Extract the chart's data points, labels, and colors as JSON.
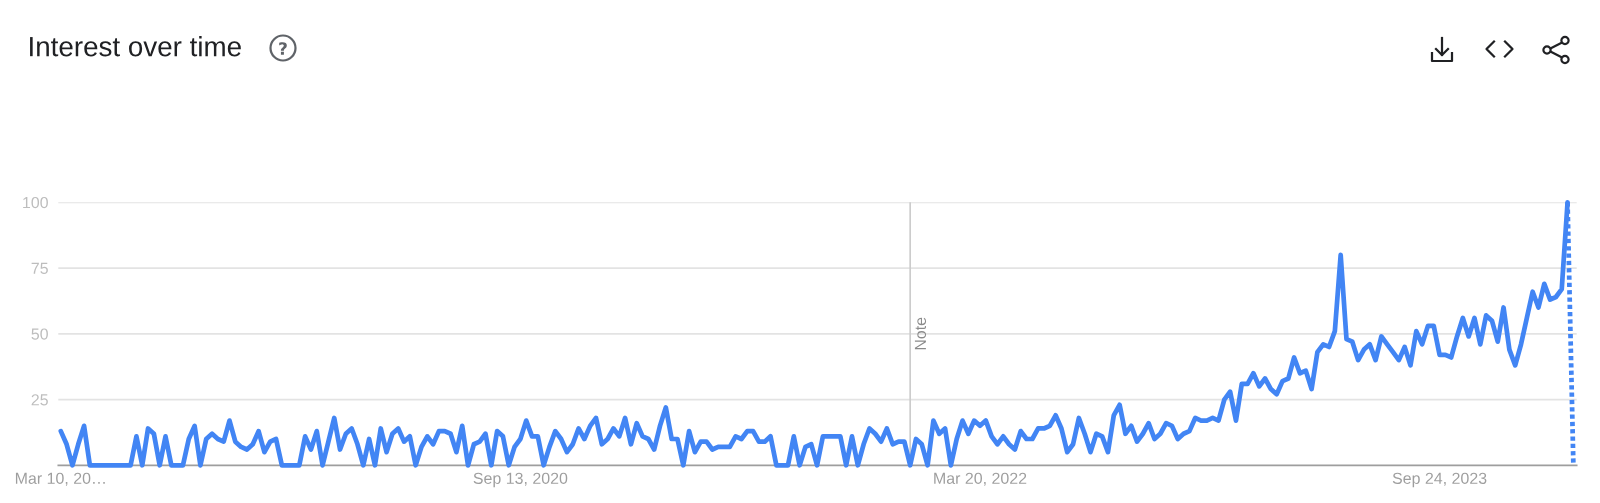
{
  "chart_data": {
    "type": "line",
    "title": "Interest over time",
    "series": [
      {
        "color": "#4285f4",
        "line_style": "solid",
        "x": [
          "2019-03-10",
          "2019-03-17",
          "2019-03-24",
          "2019-03-31",
          "2019-04-07",
          "2019-04-14",
          "2019-04-21",
          "2019-04-28",
          "2019-05-05",
          "2019-05-12",
          "2019-05-19",
          "2019-05-26",
          "2019-06-02",
          "2019-06-09",
          "2019-06-16",
          "2019-06-23",
          "2019-06-30",
          "2019-07-07",
          "2019-07-14",
          "2019-07-21",
          "2019-07-28",
          "2019-08-04",
          "2019-08-11",
          "2019-08-18",
          "2019-08-25",
          "2019-09-01",
          "2019-09-08",
          "2019-09-15",
          "2019-09-22",
          "2019-09-29",
          "2019-10-06",
          "2019-10-13",
          "2019-10-20",
          "2019-10-27",
          "2019-11-03",
          "2019-11-10",
          "2019-11-17",
          "2019-11-24",
          "2019-12-01",
          "2019-12-08",
          "2019-12-15",
          "2019-12-22",
          "2019-12-29",
          "2020-01-05",
          "2020-01-12",
          "2020-01-19",
          "2020-01-26",
          "2020-02-02",
          "2020-02-09",
          "2020-02-16",
          "2020-02-23",
          "2020-03-01",
          "2020-03-08",
          "2020-03-15",
          "2020-03-22",
          "2020-03-29",
          "2020-04-05",
          "2020-04-12",
          "2020-04-19",
          "2020-04-26",
          "2020-05-03",
          "2020-05-10",
          "2020-05-17",
          "2020-05-24",
          "2020-05-31",
          "2020-06-07",
          "2020-06-14",
          "2020-06-21",
          "2020-06-28",
          "2020-07-05",
          "2020-07-12",
          "2020-07-19",
          "2020-07-26",
          "2020-08-02",
          "2020-08-09",
          "2020-08-16",
          "2020-08-23",
          "2020-08-30",
          "2020-09-06",
          "2020-09-13",
          "2020-09-20",
          "2020-09-27",
          "2020-10-04",
          "2020-10-11",
          "2020-10-18",
          "2020-10-25",
          "2020-11-01",
          "2020-11-08",
          "2020-11-15",
          "2020-11-22",
          "2020-11-29",
          "2020-12-06",
          "2020-12-13",
          "2020-12-20",
          "2020-12-27",
          "2021-01-03",
          "2021-01-10",
          "2021-01-17",
          "2021-01-24",
          "2021-01-31",
          "2021-02-07",
          "2021-02-14",
          "2021-02-21",
          "2021-02-28",
          "2021-03-07",
          "2021-03-14",
          "2021-03-21",
          "2021-03-28",
          "2021-04-04",
          "2021-04-11",
          "2021-04-18",
          "2021-04-25",
          "2021-05-02",
          "2021-05-09",
          "2021-05-16",
          "2021-05-23",
          "2021-05-30",
          "2021-06-06",
          "2021-06-13",
          "2021-06-20",
          "2021-06-27",
          "2021-07-04",
          "2021-07-11",
          "2021-07-18",
          "2021-07-25",
          "2021-08-01",
          "2021-08-08",
          "2021-08-15",
          "2021-08-22",
          "2021-08-29",
          "2021-09-05",
          "2021-09-12",
          "2021-09-19",
          "2021-09-26",
          "2021-10-03",
          "2021-10-10",
          "2021-10-17",
          "2021-10-24",
          "2021-10-31",
          "2021-11-07",
          "2021-11-14",
          "2021-11-21",
          "2021-11-28",
          "2021-12-05",
          "2021-12-12",
          "2021-12-19",
          "2021-12-26",
          "2022-01-02",
          "2022-01-09",
          "2022-01-16",
          "2022-01-23",
          "2022-01-30",
          "2022-02-06",
          "2022-02-13",
          "2022-02-20",
          "2022-02-27",
          "2022-03-06",
          "2022-03-13",
          "2022-03-20",
          "2022-03-27",
          "2022-04-03",
          "2022-04-10",
          "2022-04-17",
          "2022-04-24",
          "2022-05-01",
          "2022-05-08",
          "2022-05-15",
          "2022-05-22",
          "2022-05-29",
          "2022-06-05",
          "2022-06-12",
          "2022-06-19",
          "2022-06-26",
          "2022-07-03",
          "2022-07-10",
          "2022-07-17",
          "2022-07-24",
          "2022-07-31",
          "2022-08-07",
          "2022-08-14",
          "2022-08-21",
          "2022-08-28",
          "2022-09-04",
          "2022-09-11",
          "2022-09-18",
          "2022-09-25",
          "2022-10-02",
          "2022-10-09",
          "2022-10-16",
          "2022-10-23",
          "2022-10-30",
          "2022-11-06",
          "2022-11-13",
          "2022-11-20",
          "2022-11-27",
          "2022-12-04",
          "2022-12-11",
          "2022-12-18",
          "2022-12-25",
          "2023-01-01",
          "2023-01-08",
          "2023-01-15",
          "2023-01-22",
          "2023-01-29",
          "2023-02-05",
          "2023-02-12",
          "2023-02-19",
          "2023-02-26",
          "2023-03-05",
          "2023-03-12",
          "2023-03-19",
          "2023-03-26",
          "2023-04-02",
          "2023-04-09",
          "2023-04-16",
          "2023-04-23",
          "2023-04-30",
          "2023-05-07",
          "2023-05-14",
          "2023-05-21",
          "2023-05-28",
          "2023-06-04",
          "2023-06-11",
          "2023-06-18",
          "2023-06-25",
          "2023-07-02",
          "2023-07-09",
          "2023-07-16",
          "2023-07-23",
          "2023-07-30",
          "2023-08-06",
          "2023-08-13",
          "2023-08-20",
          "2023-08-27",
          "2023-09-03",
          "2023-09-10",
          "2023-09-17",
          "2023-09-24",
          "2023-10-01",
          "2023-10-08",
          "2023-10-15",
          "2023-10-22",
          "2023-10-29",
          "2023-11-05",
          "2023-11-12",
          "2023-11-19",
          "2023-11-26",
          "2023-12-03",
          "2023-12-10",
          "2023-12-17",
          "2023-12-24",
          "2023-12-31",
          "2024-01-07",
          "2024-01-14",
          "2024-01-21",
          "2024-01-28",
          "2024-02-04",
          "2024-02-11",
          "2024-02-18",
          "2024-02-25"
        ],
        "values": [
          13,
          8,
          0,
          8,
          15,
          0,
          0,
          0,
          0,
          0,
          0,
          0,
          0,
          11,
          0,
          14,
          12,
          0,
          11,
          0,
          0,
          0,
          10,
          15,
          0,
          10,
          12,
          10,
          9,
          17,
          9,
          7,
          6,
          8,
          13,
          5,
          9,
          10,
          0,
          0,
          0,
          0,
          11,
          6,
          13,
          0,
          9,
          18,
          6,
          12,
          14,
          8,
          0,
          10,
          0,
          14,
          5,
          12,
          14,
          9,
          11,
          0,
          7,
          11,
          8,
          13,
          13,
          12,
          5,
          15,
          0,
          8,
          9,
          12,
          0,
          13,
          11,
          0,
          7,
          10,
          17,
          11,
          11,
          0,
          7,
          13,
          10,
          5,
          8,
          14,
          10,
          15,
          18,
          8,
          10,
          14,
          11,
          18,
          8,
          16,
          11,
          10,
          6,
          15,
          22,
          10,
          10,
          0,
          13,
          5,
          9,
          9,
          6,
          7,
          7,
          7,
          11,
          10,
          13,
          13,
          9,
          9,
          11,
          0,
          0,
          0,
          11,
          0,
          7,
          8,
          0,
          11,
          11,
          11,
          11,
          0,
          11,
          0,
          8,
          14,
          12,
          9,
          14,
          8,
          9,
          9,
          0,
          10,
          8,
          0,
          17,
          12,
          14,
          0,
          10,
          17,
          12,
          17,
          15,
          17,
          11,
          8,
          11,
          8,
          6,
          13,
          10,
          10,
          14,
          14,
          15,
          19,
          14,
          5,
          8,
          18,
          12,
          5,
          12,
          11,
          5,
          19,
          23,
          12,
          15,
          9,
          12,
          16,
          10,
          12,
          16,
          15,
          10,
          12,
          13,
          18,
          17,
          17,
          18,
          17,
          25,
          28,
          17,
          31,
          31,
          35,
          30,
          33,
          29,
          27,
          32,
          33,
          41,
          35,
          36,
          29,
          43,
          46,
          45,
          51,
          80,
          48,
          47,
          40,
          44,
          46,
          40,
          49,
          46,
          43,
          40,
          45,
          38,
          51,
          46,
          53,
          53,
          42,
          42,
          41,
          49,
          56,
          49,
          56,
          46,
          57,
          55,
          47,
          60,
          44,
          38,
          46,
          56,
          66,
          60,
          69,
          63,
          64,
          67,
          100
        ]
      },
      {
        "color": "#4285f4",
        "line_style": "dotted",
        "x": [
          "2024-02-25",
          "2024-03-03"
        ],
        "values": [
          100,
          0
        ]
      }
    ],
    "xlim": [
      "2019-03-07",
      "2024-03-07"
    ],
    "xticks": [
      {
        "value": "2019-03-10",
        "label": "Mar 10, 20…"
      },
      {
        "value": "2020-09-13",
        "label": "Sep 13, 2020"
      },
      {
        "value": "2022-03-20",
        "label": "Mar 20, 2022"
      },
      {
        "value": "2023-09-24",
        "label": "Sep 24, 2023"
      }
    ],
    "ylim": [
      0,
      100
    ],
    "yticks": [
      25,
      50,
      75,
      100
    ],
    "grid": "y",
    "ref_lines": [
      {
        "axis": "x",
        "value": "2021-12-26",
        "label": "Note",
        "color": "#cccccc"
      }
    ]
  }
}
